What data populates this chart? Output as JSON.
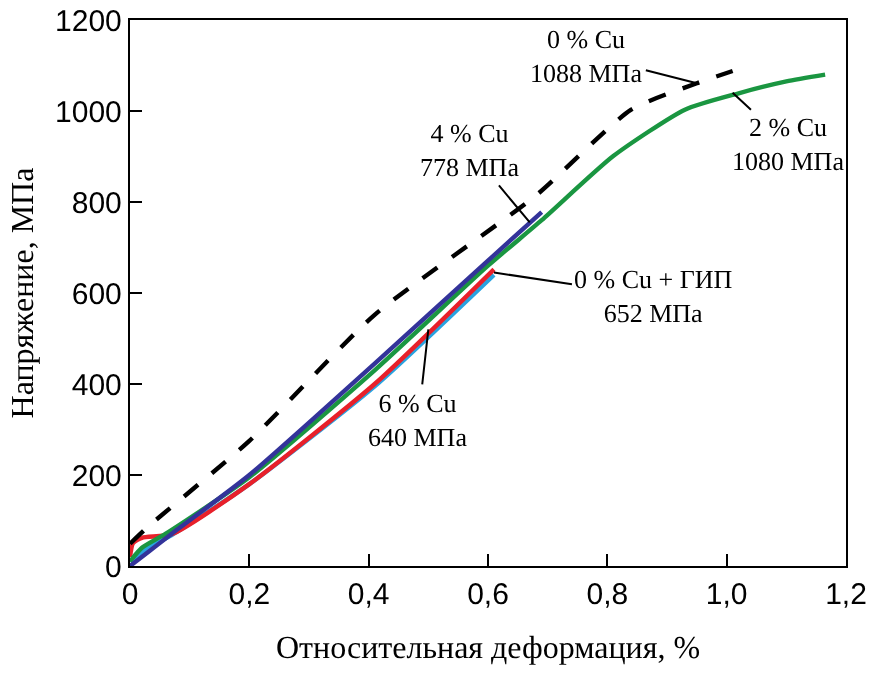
{
  "chart_data": {
    "type": "line",
    "xlabel": "Относительная деформация, %",
    "ylabel": "Напряжение, МПа",
    "xlim": [
      0,
      1.2
    ],
    "ylim": [
      0,
      1200
    ],
    "xticks": [
      0,
      {
        "value": 0.2,
        "label": "0,2"
      },
      {
        "value": 0.4,
        "label": "0,4"
      },
      {
        "value": 0.6,
        "label": "0,6"
      },
      {
        "value": 0.8,
        "label": "0,8"
      },
      {
        "value": 1,
        "label": "1,0"
      },
      {
        "value": 1.2,
        "label": "1,2"
      }
    ],
    "yticks": [
      0,
      200,
      400,
      600,
      800,
      1000,
      1200
    ],
    "series": [
      {
        "color": "#29a3e0",
        "line_style": "solid",
        "x": [
          0,
          0.01,
          0.03,
          0.07,
          0.2,
          0.41,
          0.61
        ],
        "values": [
          10,
          20,
          40,
          68,
          180,
          395,
          640
        ]
      },
      {
        "color": "#e8202a",
        "line_style": "solid",
        "x": [
          0,
          0.005,
          0.02,
          0.07,
          0.2,
          0.41,
          0.61
        ],
        "values": [
          20,
          50,
          62,
          70,
          180,
          400,
          652
        ]
      },
      {
        "color": "#1a9641",
        "line_style": "solid",
        "x": [
          0,
          0.02,
          0.06,
          0.2,
          0.41,
          0.6,
          0.69,
          0.81,
          0.93,
          1.02,
          1.1,
          1.165
        ],
        "values": [
          10,
          40,
          71,
          195,
          430,
          660,
          760,
          901,
          1003,
          1039,
          1065,
          1080
        ]
      },
      {
        "color": "#33339a",
        "line_style": "solid",
        "x": [
          0,
          0.03,
          0.07,
          0.2,
          0.41,
          0.6,
          0.69
        ],
        "values": [
          0,
          30,
          71,
          200,
          445,
          671,
          778
        ]
      },
      {
        "color": "#000000",
        "line_style": "dashed",
        "x": [
          0,
          0.03,
          0.2,
          0.41,
          0.68,
          0.84,
          0.95,
          1.01
        ],
        "values": [
          49,
          86,
          275,
          552,
          814,
          1003,
          1061,
          1088
        ]
      }
    ],
    "annotations": [
      {
        "text": "0 % Cu\n1088 МПа",
        "x": 0.95,
        "y": 1061
      },
      {
        "text": "2 % Cu\n1080 МПа",
        "x": 1.01,
        "y": 1040
      },
      {
        "text": "4 % Cu\n778 МПа",
        "x": 0.67,
        "y": 755
      },
      {
        "text": "0 % Cu + ГИП\n652 МПа",
        "x": 0.61,
        "y": 645
      },
      {
        "text": "6 % Cu\n640 МПа",
        "x": 0.5,
        "y": 520
      }
    ]
  }
}
